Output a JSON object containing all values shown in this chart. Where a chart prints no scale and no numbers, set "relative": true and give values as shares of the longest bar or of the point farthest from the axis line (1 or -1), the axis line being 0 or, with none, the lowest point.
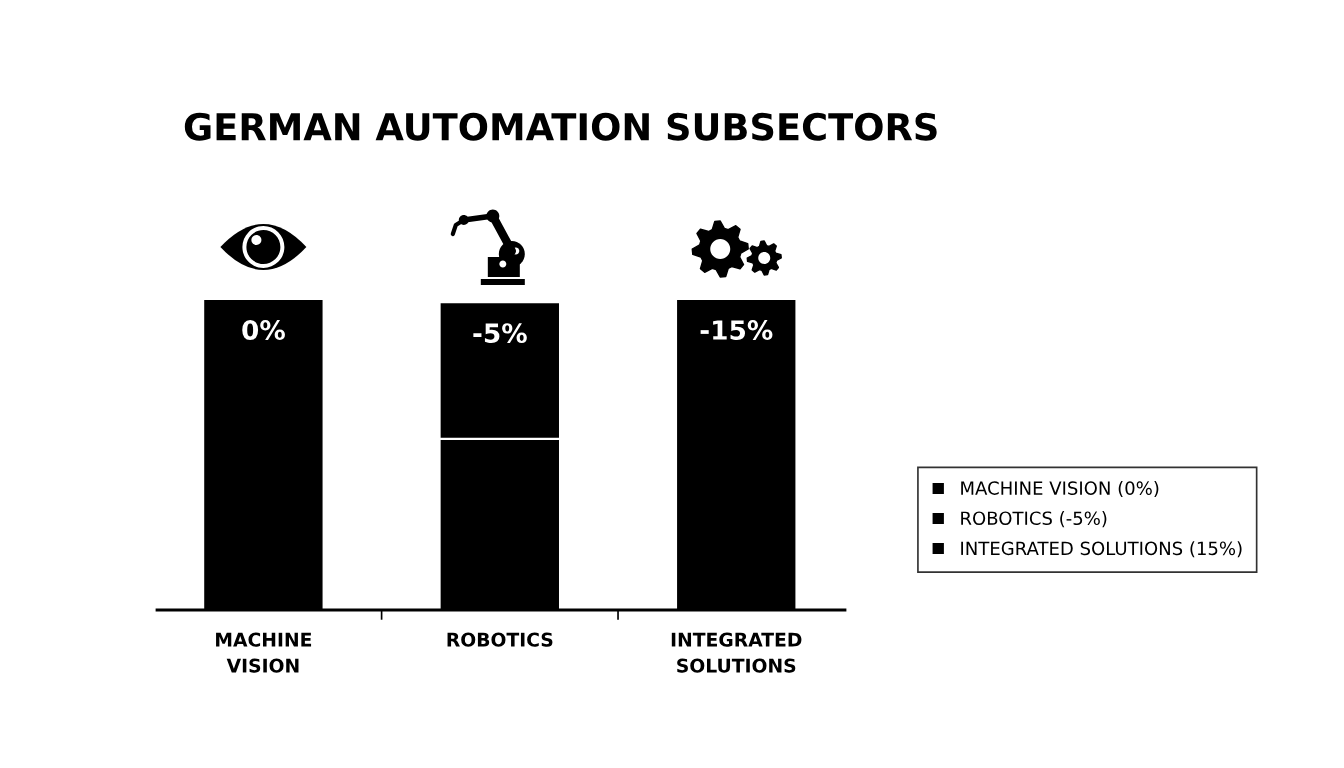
{
  "chart_data": {
    "type": "bar",
    "title": "GERMAN AUTOMATION SUBSECTORS",
    "categories": [
      "MACHINE\nVISION",
      "ROBOTICS",
      "INTEGRATED\nSOLUTIONS"
    ],
    "relative": true,
    "stacked": true,
    "legend": "right",
    "series": [
      {
        "name": "MACHINE VISION (0%)",
        "color": "#000000",
        "values": [
          1,
          null,
          null
        ]
      },
      {
        "name": "ROBOTICS (-5%)",
        "color": "#000000",
        "values": [
          null,
          0.55,
          null
        ]
      },
      {
        "color": "#000000",
        "values": [
          null,
          0.44,
          null
        ]
      },
      {
        "name": "INTEGRATED SOLUTIONS (15%)",
        "color": "#000000",
        "values": [
          null,
          null,
          1
        ]
      }
    ],
    "annotations": [
      {
        "text": "0%",
        "x": "MACHINE\nVISION",
        "y": 1
      },
      {
        "text": "-5%",
        "x": "ROBOTICS",
        "y": 0.99
      },
      {
        "text": "-15%",
        "x": "INTEGRATED\nSOLUTIONS",
        "y": 1
      }
    ]
  }
}
